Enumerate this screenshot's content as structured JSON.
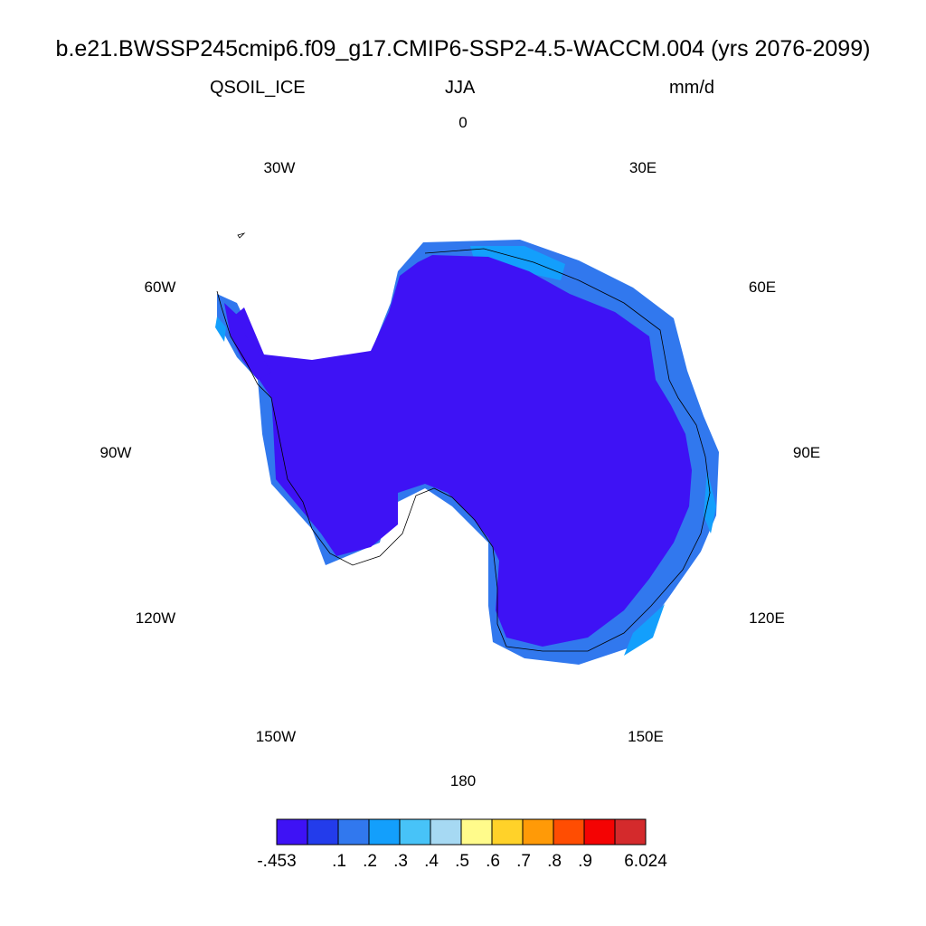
{
  "title": "b.e21.BWSSP245cmip6.f09_g17.CMIP6-SSP2-4.5-WACCM.004 (yrs 2076-2099)",
  "subtitle": {
    "left": "QSOIL_ICE",
    "center": "JJA",
    "right": "mm/d"
  },
  "map": {
    "projection": "south-polar-stereographic",
    "region": "Antarctica",
    "longitude_labels": [
      "0",
      "30E",
      "60E",
      "90E",
      "120E",
      "150E",
      "180",
      "150W",
      "120W",
      "90W",
      "60W",
      "30W"
    ]
  },
  "colorbar": {
    "tick_labels": [
      "-.453",
      ".1",
      ".2",
      ".3",
      ".4",
      ".5",
      ".6",
      ".7",
      ".8",
      ".9",
      "6.024"
    ],
    "colors": [
      "#3e12f5",
      "#233ceb",
      "#3178ee",
      "#139ffc",
      "#47c3f8",
      "#a6d9f3",
      "#fffb8b",
      "#ffd229",
      "#ff9a07",
      "#ff4d02",
      "#f40303",
      "#d42a2c"
    ]
  }
}
